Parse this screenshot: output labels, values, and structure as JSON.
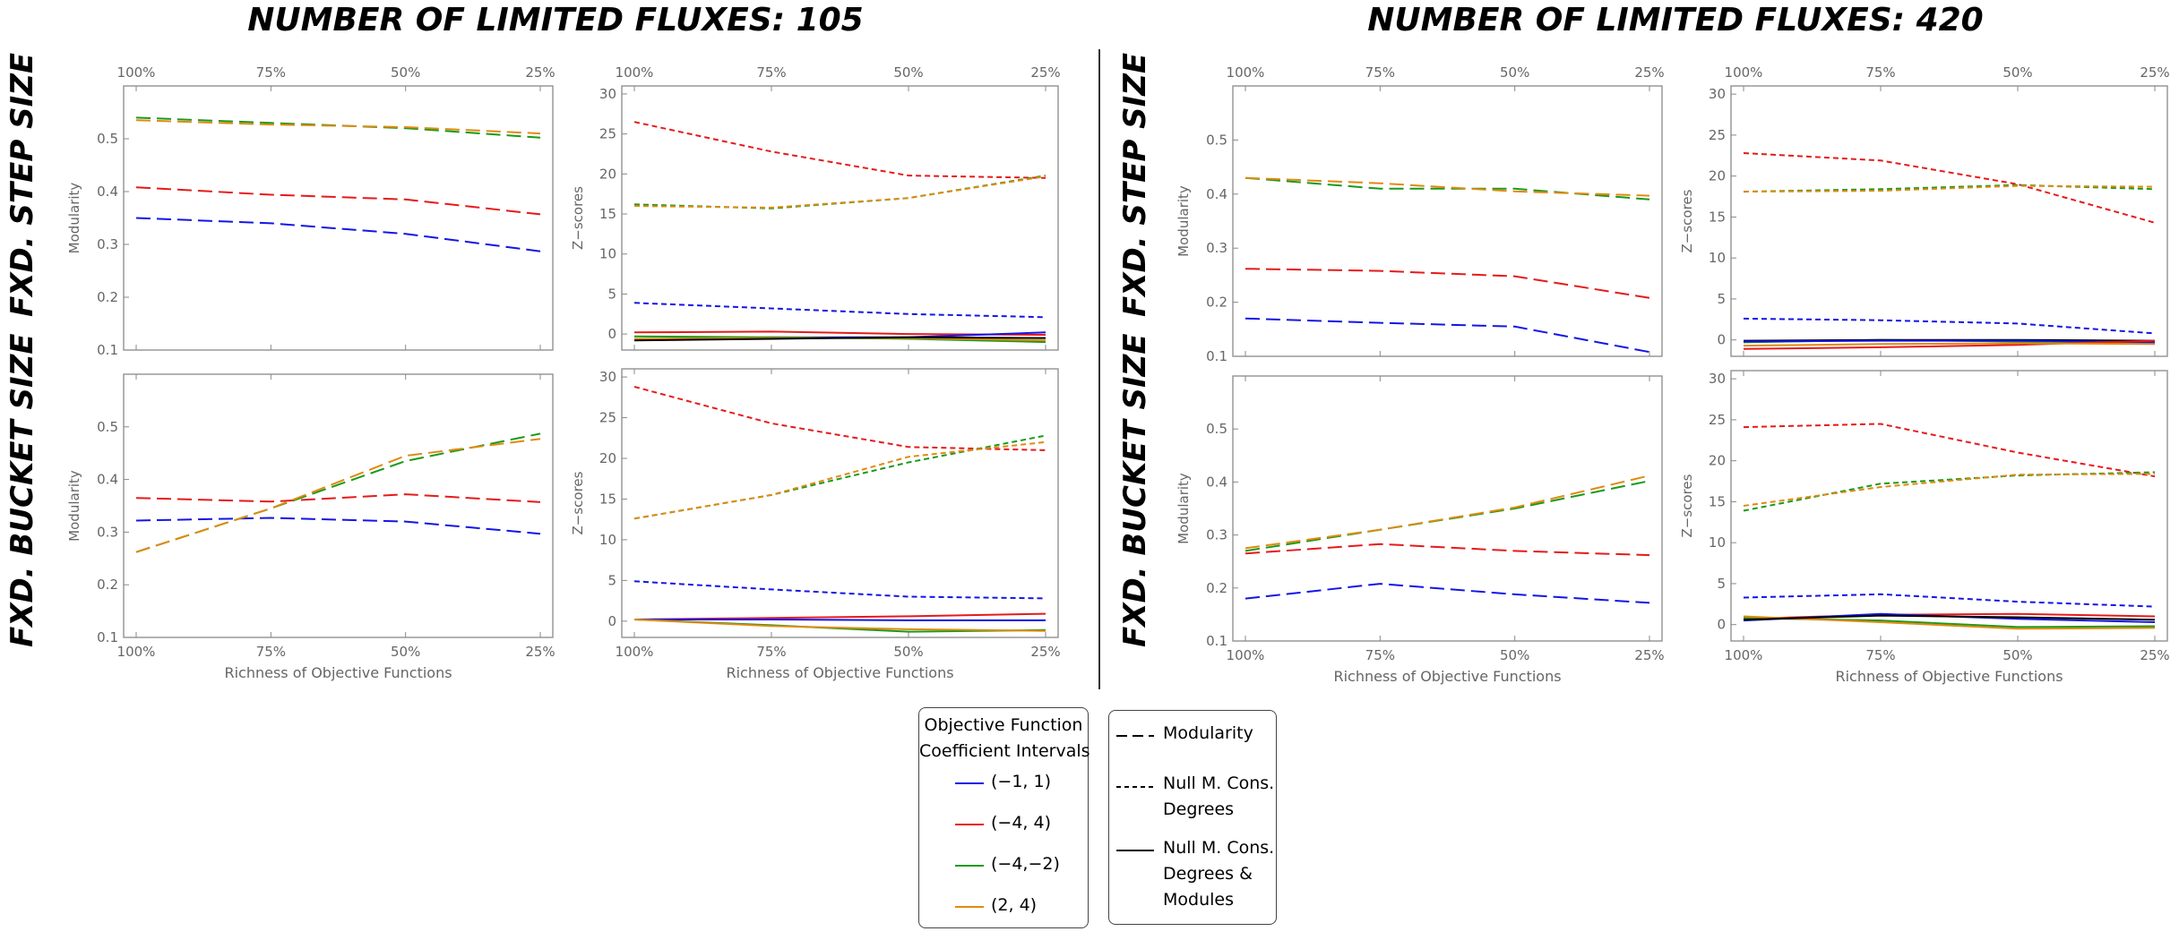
{
  "titles": {
    "left": "NUMBER OF LIMITED FLUXES: 105",
    "right": "NUMBER OF LIMITED FLUXES: 420"
  },
  "row_labels": {
    "step": "FXD. STEP SIZE",
    "bucket": "FXD. BUCKET SIZE"
  },
  "colors": {
    "blue": "#1515e6",
    "red": "#e61a1a",
    "green": "#1a9a1a",
    "orange": "#e08a10",
    "axis": "#888888",
    "ticklabel": "#666666"
  },
  "legend": {
    "intervals_title_1": "Objective Function",
    "intervals_title_2": "Coefficient Intervals",
    "intervals": [
      {
        "label": "(−1, 1)",
        "color": "#1515e6"
      },
      {
        "label": "(−4, 4)",
        "color": "#e61a1a"
      },
      {
        "label": "(−4,−2)",
        "color": "#1a9a1a"
      },
      {
        "label": "(2, 4)",
        "color": "#e08a10"
      }
    ],
    "styles": [
      {
        "dash": "long",
        "lines": [
          "Modularity"
        ]
      },
      {
        "dash": "short",
        "lines": [
          "Null M. Cons.",
          "Degrees"
        ]
      },
      {
        "dash": "solid",
        "lines": [
          "Null M. Cons.",
          "Degrees &",
          "Modules"
        ]
      }
    ]
  },
  "chart_data": [
    {
      "type": "line",
      "panel": "105-step-modularity",
      "x": [
        "100%",
        "75%",
        "50%",
        "25%"
      ],
      "ylabel": "Modularity",
      "xlabel": "",
      "ylim": [
        0.1,
        0.6
      ],
      "yticks": [
        "0.1",
        "0.2",
        "0.3",
        "0.4",
        "0.5"
      ],
      "series": [
        {
          "color": "blue",
          "dash": "long",
          "values": [
            0.35,
            0.34,
            0.32,
            0.287
          ]
        },
        {
          "color": "red",
          "dash": "long",
          "values": [
            0.408,
            0.394,
            0.385,
            0.357
          ]
        },
        {
          "color": "green",
          "dash": "long",
          "values": [
            0.54,
            0.53,
            0.52,
            0.502
          ]
        },
        {
          "color": "orange",
          "dash": "long",
          "values": [
            0.535,
            0.527,
            0.522,
            0.51
          ]
        }
      ]
    },
    {
      "type": "line",
      "panel": "105-step-zscores",
      "x": [
        "100%",
        "75%",
        "50%",
        "25%"
      ],
      "ylabel": "Z−scores",
      "xlabel": "",
      "ylim": [
        -2,
        31
      ],
      "yticks": [
        "0",
        "5",
        "10",
        "15",
        "20",
        "25",
        "30"
      ],
      "series": [
        {
          "color": "red",
          "dash": "short",
          "values": [
            26.5,
            22.8,
            19.8,
            19.5
          ]
        },
        {
          "color": "green",
          "dash": "short",
          "values": [
            16.2,
            15.7,
            17.0,
            19.8
          ]
        },
        {
          "color": "orange",
          "dash": "short",
          "values": [
            16.0,
            15.8,
            17.0,
            19.7
          ]
        },
        {
          "color": "blue",
          "dash": "short",
          "values": [
            3.9,
            3.2,
            2.5,
            2.1
          ]
        },
        {
          "color": "red",
          "dash": "solid",
          "values": [
            0.2,
            0.3,
            0.0,
            -0.1
          ]
        },
        {
          "color": "blue",
          "dash": "solid",
          "values": [
            -0.7,
            -0.4,
            -0.4,
            0.2
          ]
        },
        {
          "color": "green",
          "dash": "solid",
          "values": [
            -0.3,
            -0.4,
            -0.6,
            -1.0
          ]
        },
        {
          "color": "orange",
          "dash": "solid",
          "values": [
            -0.6,
            -0.5,
            -0.5,
            -0.8
          ]
        },
        {
          "color": "black",
          "dash": "solid",
          "values": [
            -0.8,
            -0.6,
            -0.4,
            -0.5
          ]
        }
      ]
    },
    {
      "type": "line",
      "panel": "105-bucket-modularity",
      "x": [
        "100%",
        "75%",
        "50%",
        "25%"
      ],
      "ylabel": "Modularity",
      "xlabel": "Richness of Objective Functions",
      "ylim": [
        0.1,
        0.6
      ],
      "yticks": [
        "0.1",
        "0.2",
        "0.3",
        "0.4",
        "0.5"
      ],
      "series": [
        {
          "color": "blue",
          "dash": "long",
          "values": [
            0.322,
            0.327,
            0.32,
            0.297
          ]
        },
        {
          "color": "red",
          "dash": "long",
          "values": [
            0.365,
            0.358,
            0.372,
            0.357
          ]
        },
        {
          "color": "green",
          "dash": "long",
          "values": [
            0.262,
            0.345,
            0.435,
            0.487
          ]
        },
        {
          "color": "orange",
          "dash": "long",
          "values": [
            0.262,
            0.345,
            0.445,
            0.477
          ]
        }
      ]
    },
    {
      "type": "line",
      "panel": "105-bucket-zscores",
      "x": [
        "100%",
        "75%",
        "50%",
        "25%"
      ],
      "ylabel": "Z−scores",
      "xlabel": "Richness of Objective Functions",
      "ylim": [
        -2,
        31
      ],
      "yticks": [
        "0",
        "5",
        "10",
        "15",
        "20",
        "25",
        "30"
      ],
      "series": [
        {
          "color": "red",
          "dash": "short",
          "values": [
            28.8,
            24.3,
            21.4,
            21.0
          ]
        },
        {
          "color": "green",
          "dash": "short",
          "values": [
            12.6,
            15.5,
            19.5,
            22.8
          ]
        },
        {
          "color": "orange",
          "dash": "short",
          "values": [
            12.6,
            15.5,
            20.2,
            22.0
          ]
        },
        {
          "color": "blue",
          "dash": "short",
          "values": [
            4.9,
            3.9,
            3.0,
            2.8
          ]
        },
        {
          "color": "red",
          "dash": "solid",
          "values": [
            0.2,
            0.4,
            0.6,
            0.9
          ]
        },
        {
          "color": "blue",
          "dash": "solid",
          "values": [
            0.2,
            0.2,
            0.1,
            0.1
          ]
        },
        {
          "color": "green",
          "dash": "solid",
          "values": [
            0.2,
            -0.5,
            -1.3,
            -1.1
          ]
        },
        {
          "color": "orange",
          "dash": "solid",
          "values": [
            0.2,
            -0.6,
            -1.0,
            -1.2
          ]
        }
      ]
    },
    {
      "type": "line",
      "panel": "420-step-modularity",
      "x": [
        "100%",
        "75%",
        "50%",
        "25%"
      ],
      "ylabel": "Modularity",
      "xlabel": "",
      "ylim": [
        0.1,
        0.6
      ],
      "yticks": [
        "0.1",
        "0.2",
        "0.3",
        "0.4",
        "0.5"
      ],
      "series": [
        {
          "color": "blue",
          "dash": "long",
          "values": [
            0.17,
            0.162,
            0.155,
            0.108
          ]
        },
        {
          "color": "red",
          "dash": "long",
          "values": [
            0.262,
            0.258,
            0.248,
            0.208
          ]
        },
        {
          "color": "green",
          "dash": "long",
          "values": [
            0.43,
            0.41,
            0.41,
            0.39
          ]
        },
        {
          "color": "orange",
          "dash": "long",
          "values": [
            0.43,
            0.42,
            0.405,
            0.397
          ]
        }
      ]
    },
    {
      "type": "line",
      "panel": "420-step-zscores",
      "x": [
        "100%",
        "75%",
        "50%",
        "25%"
      ],
      "ylabel": "Z−scores",
      "xlabel": "",
      "ylim": [
        -2,
        31
      ],
      "yticks": [
        "0",
        "5",
        "10",
        "15",
        "20",
        "25",
        "30"
      ],
      "series": [
        {
          "color": "red",
          "dash": "short",
          "values": [
            22.8,
            21.9,
            19.0,
            14.3
          ]
        },
        {
          "color": "green",
          "dash": "short",
          "values": [
            18.1,
            18.4,
            18.9,
            18.4
          ]
        },
        {
          "color": "orange",
          "dash": "short",
          "values": [
            18.1,
            18.2,
            18.8,
            18.7
          ]
        },
        {
          "color": "blue",
          "dash": "short",
          "values": [
            2.6,
            2.4,
            2.0,
            0.8
          ]
        },
        {
          "color": "green",
          "dash": "solid",
          "values": [
            -0.3,
            0.0,
            -0.2,
            -0.3
          ]
        },
        {
          "color": "black",
          "dash": "solid",
          "values": [
            -0.1,
            0.0,
            0.0,
            -0.1
          ]
        },
        {
          "color": "blue",
          "dash": "solid",
          "values": [
            -0.2,
            -0.1,
            -0.1,
            -0.3
          ]
        },
        {
          "color": "red",
          "dash": "solid",
          "values": [
            -1.1,
            -0.9,
            -0.6,
            -0.1
          ]
        },
        {
          "color": "orange",
          "dash": "solid",
          "values": [
            -0.7,
            -0.5,
            -0.4,
            -0.5
          ]
        }
      ]
    },
    {
      "type": "line",
      "panel": "420-bucket-modularity",
      "x": [
        "100%",
        "75%",
        "50%",
        "25%"
      ],
      "ylabel": "Modularity",
      "xlabel": "Richness of Objective Functions",
      "ylim": [
        0.1,
        0.6
      ],
      "yticks": [
        "0.1",
        "0.2",
        "0.3",
        "0.4",
        "0.5"
      ],
      "series": [
        {
          "color": "blue",
          "dash": "long",
          "values": [
            0.18,
            0.208,
            0.188,
            0.172
          ]
        },
        {
          "color": "red",
          "dash": "long",
          "values": [
            0.265,
            0.283,
            0.27,
            0.262
          ]
        },
        {
          "color": "green",
          "dash": "long",
          "values": [
            0.27,
            0.31,
            0.35,
            0.402
          ]
        },
        {
          "color": "orange",
          "dash": "long",
          "values": [
            0.275,
            0.31,
            0.352,
            0.412
          ]
        }
      ]
    },
    {
      "type": "line",
      "panel": "420-bucket-zscores",
      "x": [
        "100%",
        "75%",
        "50%",
        "25%"
      ],
      "ylabel": "Z−scores",
      "xlabel": "Richness of Objective Functions",
      "ylim": [
        -2,
        31
      ],
      "yticks": [
        "0",
        "5",
        "10",
        "15",
        "20",
        "25",
        "30"
      ],
      "series": [
        {
          "color": "red",
          "dash": "short",
          "values": [
            24.1,
            24.5,
            21.0,
            18.1
          ]
        },
        {
          "color": "green",
          "dash": "short",
          "values": [
            13.9,
            17.2,
            18.2,
            18.6
          ]
        },
        {
          "color": "orange",
          "dash": "short",
          "values": [
            14.5,
            16.8,
            18.3,
            18.4
          ]
        },
        {
          "color": "blue",
          "dash": "short",
          "values": [
            3.3,
            3.7,
            2.8,
            2.2
          ]
        },
        {
          "color": "red",
          "dash": "solid",
          "values": [
            0.7,
            1.2,
            1.3,
            1.0
          ]
        },
        {
          "color": "blue",
          "dash": "solid",
          "values": [
            0.5,
            1.3,
            0.7,
            0.3
          ]
        },
        {
          "color": "green",
          "dash": "solid",
          "values": [
            0.8,
            0.5,
            -0.3,
            -0.2
          ]
        },
        {
          "color": "orange",
          "dash": "solid",
          "values": [
            1.0,
            0.3,
            -0.5,
            -0.4
          ]
        },
        {
          "color": "black",
          "dash": "solid",
          "values": [
            0.6,
            1.1,
            0.9,
            0.6
          ]
        }
      ]
    }
  ]
}
